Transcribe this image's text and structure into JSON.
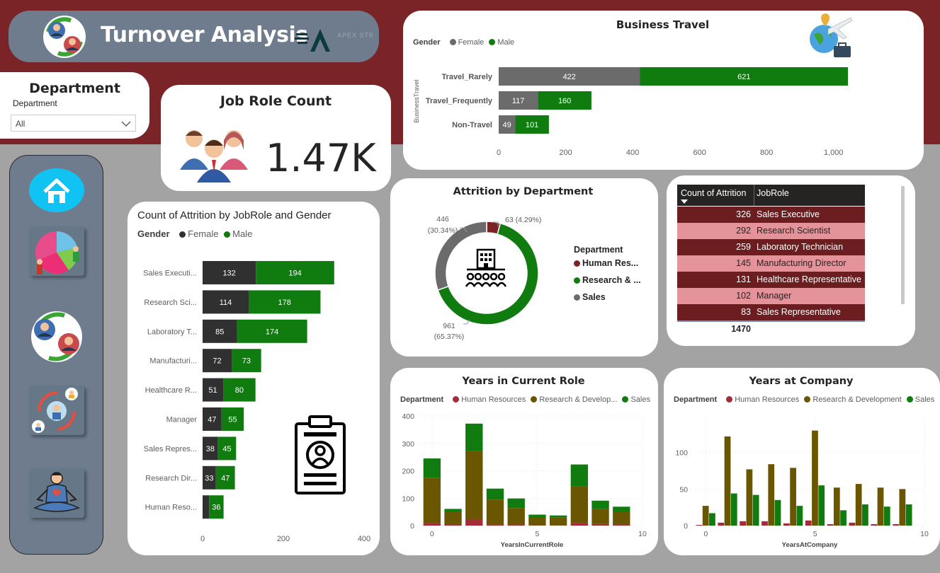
{
  "header": {
    "title": "Turnover Analysis",
    "brand_logo_text": "APEX STRIVE"
  },
  "department_filter": {
    "title": "Department",
    "label": "Department",
    "selected": "All"
  },
  "job_role_count": {
    "title": "Job Role Count",
    "value": "1.47K"
  },
  "nav": {
    "items": [
      "home",
      "segments",
      "turnover",
      "people-cycle",
      "wellbeing"
    ]
  },
  "colors": {
    "maroon": "#7b2428",
    "green": "#107c10",
    "dark_gray": "#303030",
    "mid_gray": "#6b6b6b",
    "olive": "#6b5600",
    "hr_red": "#a52a3a"
  },
  "table": {
    "col1": "Count of Attrition",
    "col2": "JobRole",
    "rows": [
      {
        "count": "326",
        "role": "Sales Executive"
      },
      {
        "count": "292",
        "role": "Research Scientist"
      },
      {
        "count": "259",
        "role": "Laboratory Technician"
      },
      {
        "count": "145",
        "role": "Manufacturing Director"
      },
      {
        "count": "131",
        "role": "Healthcare Representative"
      },
      {
        "count": "102",
        "role": "Manager"
      },
      {
        "count": "83",
        "role": "Sales Representative"
      }
    ],
    "total": "1470"
  },
  "chart_data": [
    {
      "id": "business_travel",
      "type": "bar",
      "orientation": "horizontal",
      "stacked": true,
      "title": "Business Travel",
      "legend_title": "Gender",
      "ylabel": "BusinessTravel",
      "categories": [
        "Travel_Rarely",
        "Travel_Frequently",
        "Non-Travel"
      ],
      "series": [
        {
          "name": "Female",
          "values": [
            422,
            117,
            49
          ]
        },
        {
          "name": "Male",
          "values": [
            621,
            160,
            101
          ]
        }
      ],
      "xticks": [
        "0",
        "200",
        "400",
        "600",
        "800",
        "1,000"
      ],
      "xlim": [
        0,
        1100
      ]
    },
    {
      "id": "attrition_jobrole_gender",
      "type": "bar",
      "orientation": "horizontal",
      "stacked": true,
      "title": "Count of Attrition by JobRole and Gender",
      "legend_title": "Gender",
      "categories": [
        "Sales Executi...",
        "Research Sci...",
        "Laboratory T...",
        "Manufacturi...",
        "Healthcare R...",
        "Manager",
        "Sales Repres...",
        "Research Dir...",
        "Human Reso..."
      ],
      "series": [
        {
          "name": "Female",
          "values": [
            132,
            114,
            85,
            72,
            51,
            47,
            38,
            33,
            16
          ]
        },
        {
          "name": "Male",
          "values": [
            194,
            178,
            174,
            73,
            80,
            55,
            45,
            47,
            36
          ]
        }
      ],
      "female_labels": [
        "132",
        "114",
        "85",
        "72",
        "51",
        "47",
        "38",
        "33",
        ""
      ],
      "male_labels": [
        "194",
        "178",
        "174",
        "73",
        "80",
        "55",
        "45",
        "47",
        "36"
      ],
      "xticks": [
        "0",
        "200",
        "400"
      ],
      "xlim": [
        0,
        400
      ]
    },
    {
      "id": "attrition_by_department",
      "type": "pie",
      "donut": true,
      "title": "Attrition by Department",
      "legend_title": "Department",
      "labels": [
        "Human Res...",
        "Research & ...",
        "Sales"
      ],
      "values": [
        63,
        961,
        446
      ],
      "value_labels": [
        "63 (4.29%)",
        "961",
        "446"
      ],
      "pct_labels": [
        "",
        "(65.37%)",
        "(30.34%)"
      ]
    },
    {
      "id": "years_in_current_role",
      "type": "bar",
      "stacked": true,
      "title": "Years in Current Role",
      "legend_title": "Department",
      "legend": [
        "Human Resources",
        "Research & Develop...",
        "Sales"
      ],
      "xlabel": "YearsInCurrentRole",
      "x": [
        0,
        1,
        2,
        3,
        4,
        5,
        6,
        7,
        8,
        9
      ],
      "series": [
        {
          "name": "Human Resources",
          "values": [
            10,
            4,
            22,
            5,
            4,
            1,
            1,
            8,
            6,
            4
          ]
        },
        {
          "name": "Research & Development",
          "values": [
            165,
            45,
            250,
            90,
            60,
            30,
            28,
            135,
            55,
            45
          ]
        },
        {
          "name": "Sales",
          "values": [
            70,
            12,
            100,
            40,
            35,
            9,
            8,
            80,
            30,
            20
          ]
        }
      ],
      "yticks": [
        "0",
        "100",
        "200",
        "300",
        "400"
      ],
      "xticks": [
        "0",
        "5",
        "10"
      ],
      "ylim": [
        0,
        400
      ],
      "xlim": [
        -0.5,
        10
      ]
    },
    {
      "id": "years_at_company",
      "type": "bar",
      "grouped": true,
      "title": "Years at Company",
      "legend_title": "Department",
      "legend": [
        "Human Resources",
        "Research & Development",
        "Sales"
      ],
      "xlabel": "YearsAtCompany",
      "x": [
        0,
        1,
        2,
        3,
        4,
        5,
        6,
        7,
        8,
        9
      ],
      "series": [
        {
          "name": "Human Resources",
          "values": [
            1,
            4,
            6,
            6,
            3,
            7,
            2,
            4,
            2,
            2
          ]
        },
        {
          "name": "Research & Development",
          "values": [
            27,
            122,
            77,
            84,
            79,
            130,
            52,
            57,
            52,
            50
          ]
        },
        {
          "name": "Sales",
          "values": [
            17,
            44,
            42,
            35,
            27,
            55,
            21,
            29,
            26,
            29
          ]
        }
      ],
      "yticks": [
        "0",
        "50",
        "100"
      ],
      "xticks": [
        "0",
        "5",
        "10"
      ],
      "ylim": [
        0,
        150
      ],
      "xlim": [
        -0.5,
        10
      ]
    }
  ]
}
